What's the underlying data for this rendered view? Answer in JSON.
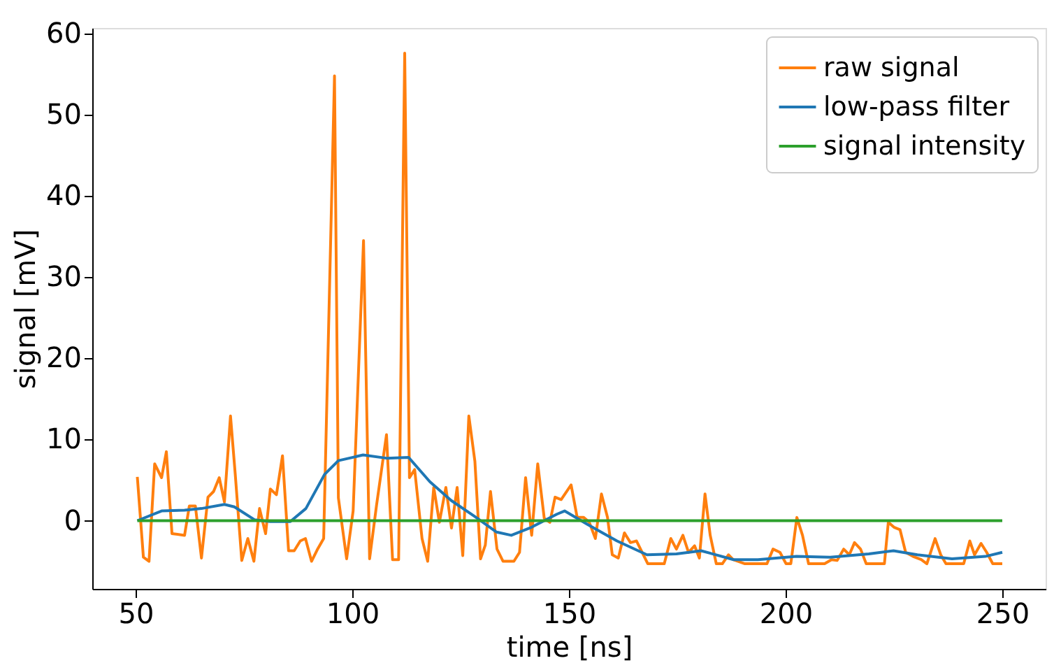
{
  "chart_data": {
    "type": "line",
    "xlabel": "time [ns]",
    "ylabel": "signal [mV]",
    "xlim": [
      40,
      260
    ],
    "xticks": [
      50,
      100,
      150,
      200,
      250
    ],
    "ylim": [
      -8.4,
      60.7
    ],
    "yticks": [
      0,
      10,
      20,
      30,
      40,
      50,
      60
    ],
    "grid": false,
    "legend": "top right",
    "marker": "none",
    "line_style": "solid",
    "series": [
      {
        "name": "raw signal",
        "color": "#ff7f0e",
        "x": [
          50.4,
          51.8,
          53.1,
          54.4,
          56,
          57.1,
          58.4,
          61.3,
          62.4,
          63.8,
          65.2,
          66.7,
          68,
          69.3,
          70.5,
          71.9,
          73,
          74.5,
          75.9,
          77.3,
          78.6,
          80,
          81.1,
          82.5,
          83.9,
          85.3,
          86.6,
          88,
          89.2,
          90.6,
          91.9,
          93.4,
          95.9,
          96.8,
          98.7,
          100.2,
          102.6,
          104,
          105.6,
          107.9,
          109.3,
          110.7,
          112.1,
          113.2,
          114.4,
          116.1,
          117.4,
          118.8,
          120.1,
          121.6,
          122.9,
          124.2,
          125.5,
          126.9,
          128.3,
          129.6,
          130.7,
          131.9,
          133.4,
          134.8,
          137.3,
          138.6,
          140,
          141.4,
          142.8,
          144.3,
          145.6,
          146.8,
          148.2,
          150.5,
          151.9,
          153.4,
          154.7,
          156.1,
          157.5,
          158.9,
          160,
          161.4,
          162.8,
          164.2,
          165.6,
          168.2,
          172,
          173.5,
          174.8,
          176.3,
          177.6,
          179,
          180.1,
          181.4,
          182.6,
          184,
          185.4,
          186.8,
          187.9,
          190.6,
          195.7,
          197.1,
          198.7,
          200.1,
          201.2,
          202.6,
          203.9,
          205.3,
          209,
          210.6,
          211.9,
          213.4,
          214.7,
          215.9,
          217.3,
          218.6,
          222.8,
          223.7,
          225,
          226.4,
          227.7,
          229.4,
          231.3,
          232.6,
          234.5,
          235.8,
          237,
          241.1,
          242.5,
          243.6,
          245.1,
          246.4,
          247.8,
          250
        ],
        "values": [
          5.4,
          -4.5,
          -5.0,
          7.0,
          5.3,
          8.5,
          -1.6,
          -1.8,
          1.8,
          1.8,
          -4.6,
          2.9,
          3.6,
          5.3,
          2.3,
          12.9,
          5.7,
          -4.9,
          -2.2,
          -5.0,
          1.5,
          -1.6,
          3.9,
          3.2,
          8.0,
          -3.7,
          -3.7,
          -2.5,
          -2.2,
          -5.0,
          -3.6,
          -2.2,
          54.8,
          2.8,
          -4.7,
          1.2,
          34.5,
          -4.7,
          1.9,
          10.6,
          -4.8,
          -4.8,
          57.6,
          5.3,
          6.3,
          -2.2,
          -5.0,
          4.1,
          -0.2,
          4.1,
          -0.9,
          4.1,
          -4.3,
          12.9,
          7.3,
          -4.7,
          -3.0,
          3.6,
          -3.5,
          -5.0,
          -5.0,
          -3.9,
          5.3,
          -1.8,
          7.0,
          0.3,
          -0.2,
          2.9,
          2.6,
          4.4,
          0.4,
          0.4,
          -0.2,
          -2.2,
          3.3,
          0.4,
          -4.2,
          -4.6,
          -1.5,
          -2.7,
          -2.5,
          -5.3,
          -5.3,
          -2.2,
          -3.5,
          -1.8,
          -3.9,
          -3.1,
          -4.6,
          3.3,
          -1.8,
          -5.3,
          -5.3,
          -4.2,
          -4.8,
          -5.3,
          -5.3,
          -3.5,
          -3.9,
          -5.3,
          -5.3,
          0.4,
          -1.8,
          -5.3,
          -5.3,
          -4.8,
          -4.9,
          -3.5,
          -4.2,
          -2.7,
          -3.5,
          -5.3,
          -5.3,
          -0.2,
          -0.8,
          -1.1,
          -3.9,
          -4.4,
          -4.8,
          -5.3,
          -2.2,
          -4.2,
          -5.3,
          -5.3,
          -2.5,
          -4.2,
          -2.8,
          -3.9,
          -5.3,
          -5.3
        ]
      },
      {
        "name": "low-pass filter",
        "color": "#1f77b4",
        "x": [
          50.4,
          56,
          61.3,
          65.2,
          70.5,
          72.8,
          77.5,
          81.1,
          85.7,
          89.3,
          93.6,
          96.8,
          102.5,
          107.9,
          113,
          117.9,
          122.8,
          128.3,
          133.3,
          136.7,
          141.4,
          147.2,
          149,
          154.4,
          161.1,
          168,
          174.8,
          180.5,
          188,
          193.6,
          202.5,
          210.3,
          219.2,
          224.9,
          230.4,
          238.4,
          246.1,
          250
        ],
        "values": [
          0,
          1.2,
          1.3,
          1.5,
          2.0,
          1.7,
          0.1,
          -0.1,
          -0.1,
          1.5,
          5.7,
          7.4,
          8.1,
          7.7,
          7.8,
          4.8,
          2.5,
          0.5,
          -1.4,
          -1.8,
          -0.8,
          0.8,
          1.2,
          -0.5,
          -2.5,
          -4.2,
          -4.1,
          -3.7,
          -4.8,
          -4.8,
          -4.4,
          -4.5,
          -4.1,
          -3.7,
          -4.2,
          -4.7,
          -4.4,
          -3.9
        ]
      },
      {
        "name": "signal intensity",
        "color": "#2ca02c",
        "x": [
          50.4,
          250
        ],
        "values": [
          0,
          0
        ]
      }
    ]
  }
}
